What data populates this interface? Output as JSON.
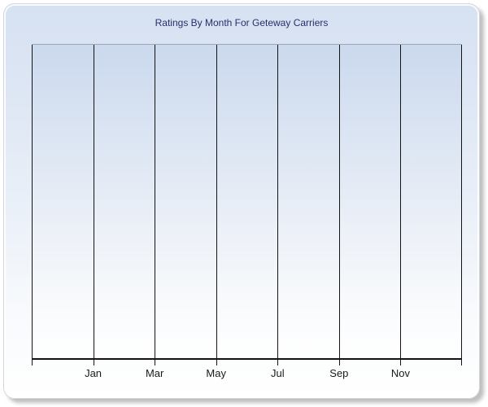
{
  "panel": {
    "title": "Ratings By Month For Geteway Carriers"
  },
  "chart_data": {
    "type": "line",
    "title": "Ratings By Month For Geteway Carriers",
    "x_tick_labels": [
      "Jan",
      "Mar",
      "May",
      "Jul",
      "Sep",
      "Nov"
    ],
    "x_gridline_count": 8,
    "y_tick_labels": [],
    "series": [],
    "grid": "vertical-only",
    "legend": "none",
    "plot_empty": true
  },
  "colors": {
    "panel_gradient_top": "#d6e1f2",
    "panel_gradient_bottom": "#ffffff",
    "plot_gradient_top": "#cbd9ee",
    "plot_gradient_bottom": "#ffffff",
    "title_text": "#26306b",
    "axis_and_gridlines": "#141414",
    "plot_top_border": "#9aa5b5",
    "axis_label_text": "#1a1a1a"
  }
}
